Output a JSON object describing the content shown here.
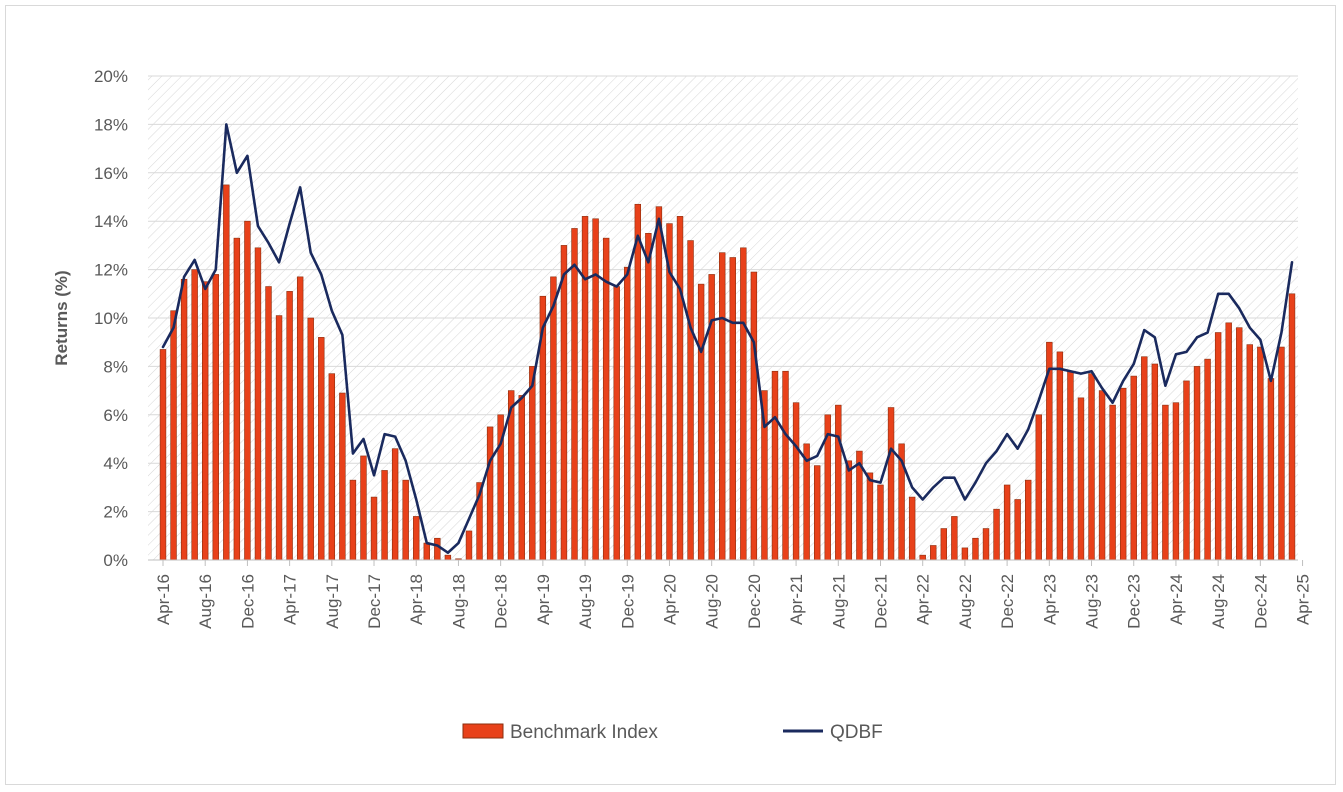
{
  "chart_data": {
    "type": "bar",
    "title": "",
    "xlabel": "",
    "ylabel": "Returns (%)",
    "ylim": [
      0,
      20
    ],
    "yticks": [
      "0%",
      "2%",
      "4%",
      "6%",
      "8%",
      "10%",
      "12%",
      "14%",
      "16%",
      "18%",
      "20%"
    ],
    "ytick_values": [
      0,
      2,
      4,
      6,
      8,
      10,
      12,
      14,
      16,
      18,
      20
    ],
    "xtick_labels": [
      "Apr-16",
      "Aug-16",
      "Dec-16",
      "Apr-17",
      "Aug-17",
      "Dec-17",
      "Apr-18",
      "Aug-18",
      "Dec-18",
      "Apr-19",
      "Aug-19",
      "Dec-19",
      "Apr-20",
      "Aug-20",
      "Dec-20",
      "Apr-21",
      "Aug-21",
      "Dec-21",
      "Apr-22",
      "Aug-22",
      "Dec-22",
      "Apr-23",
      "Aug-23",
      "Dec-23",
      "Apr-24",
      "Aug-24",
      "Dec-24",
      "Apr-25"
    ],
    "xtick_step": 4,
    "legend_position": "bottom",
    "series": [
      {
        "name": "Benchmark Index",
        "kind": "bar",
        "color": "#E8411A",
        "values": [
          8.7,
          10.3,
          11.6,
          12.0,
          11.5,
          11.8,
          15.5,
          13.3,
          14.0,
          12.9,
          11.3,
          10.1,
          11.1,
          11.7,
          10.0,
          9.2,
          7.7,
          6.9,
          3.3,
          4.3,
          2.6,
          3.7,
          4.6,
          3.3,
          1.8,
          0.7,
          0.9,
          0.2,
          0.05,
          1.2,
          3.2,
          5.5,
          6.0,
          7.0,
          6.8,
          8.0,
          10.9,
          11.7,
          13.0,
          13.7,
          14.2,
          14.1,
          13.3,
          11.3,
          12.1,
          14.7,
          13.5,
          14.6,
          13.9,
          14.2,
          13.2,
          11.4,
          11.8,
          12.7,
          12.5,
          12.9,
          11.9,
          7.0,
          7.8,
          7.8,
          6.5,
          4.8,
          3.9,
          6.0,
          6.4,
          4.1,
          4.5,
          3.6,
          3.1,
          6.3,
          4.8,
          2.6,
          0.2,
          0.6,
          1.3,
          1.8,
          0.5,
          0.9,
          1.3,
          2.1,
          3.1,
          2.5,
          3.3,
          6.0,
          9.0,
          8.6,
          7.8,
          6.7,
          7.7,
          7.0,
          6.4,
          7.1,
          7.6,
          8.4,
          8.1,
          6.4,
          6.5,
          7.4,
          8.0,
          8.3,
          9.4,
          9.8,
          9.6,
          8.9,
          8.8,
          7.5,
          8.8,
          11.0
        ]
      },
      {
        "name": "QDBF",
        "kind": "line",
        "color": "#1A2A5E",
        "values": [
          8.8,
          9.6,
          11.7,
          12.4,
          11.2,
          12.0,
          18.0,
          16.0,
          16.7,
          13.8,
          13.1,
          12.3,
          13.9,
          15.4,
          12.7,
          11.8,
          10.3,
          9.3,
          4.4,
          5.0,
          3.5,
          5.2,
          5.1,
          4.1,
          2.5,
          0.7,
          0.6,
          0.3,
          0.7,
          1.7,
          2.7,
          4.1,
          4.8,
          6.3,
          6.7,
          7.2,
          9.6,
          10.5,
          11.8,
          12.2,
          11.6,
          11.8,
          11.5,
          11.3,
          11.8,
          13.4,
          12.3,
          14.1,
          11.9,
          11.2,
          9.6,
          8.6,
          9.9,
          10.0,
          9.8,
          9.8,
          9.0,
          5.5,
          5.9,
          5.2,
          4.7,
          4.1,
          4.3,
          5.2,
          5.1,
          3.7,
          4.0,
          3.3,
          3.2,
          4.6,
          4.1,
          3.0,
          2.5,
          3.0,
          3.4,
          3.4,
          2.5,
          3.2,
          4.0,
          4.5,
          5.2,
          4.6,
          5.4,
          6.6,
          7.9,
          7.9,
          7.8,
          7.7,
          7.8,
          7.1,
          6.5,
          7.4,
          8.1,
          9.5,
          9.2,
          7.2,
          8.5,
          8.6,
          9.2,
          9.4,
          11.0,
          11.0,
          10.4,
          9.6,
          9.1,
          7.4,
          9.4,
          12.3
        ]
      }
    ]
  }
}
